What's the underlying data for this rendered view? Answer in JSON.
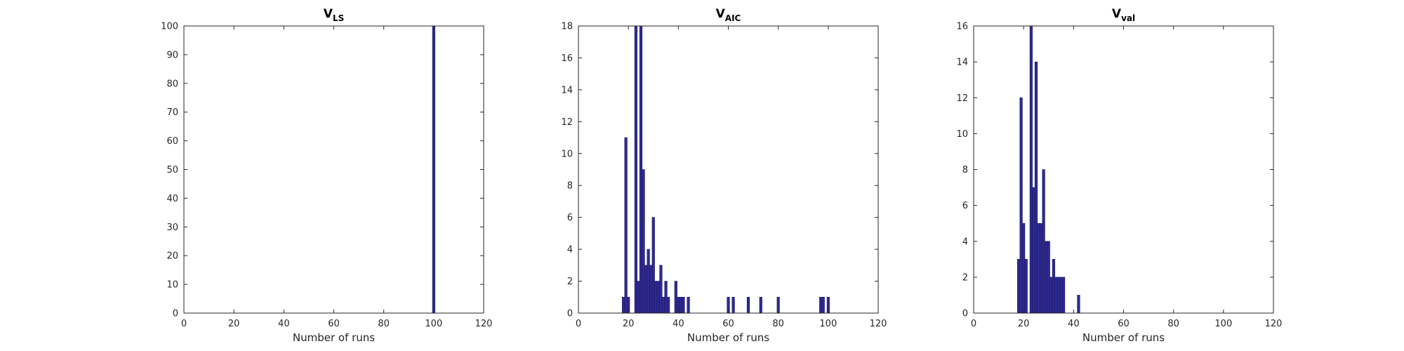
{
  "colors": {
    "bar_fill": "#2e2a8f",
    "bar_edge": "#1a1760",
    "axis": "#262626"
  },
  "chart_data": [
    {
      "type": "bar",
      "title_main": "V",
      "title_sub": "LS",
      "xlabel": "Number of runs",
      "ylabel": "",
      "xlim": [
        0,
        120
      ],
      "ylim": [
        0,
        100
      ],
      "xticks": [
        0,
        20,
        40,
        60,
        80,
        100,
        120
      ],
      "yticks": [
        0,
        10,
        20,
        30,
        40,
        50,
        60,
        70,
        80,
        90,
        100
      ],
      "bar_width": 1,
      "x": [
        100
      ],
      "values": [
        100
      ]
    },
    {
      "type": "bar",
      "title_main": "V",
      "title_sub": "AIC",
      "xlabel": "Number of runs",
      "ylabel": "",
      "xlim": [
        0,
        120
      ],
      "ylim": [
        0,
        18
      ],
      "xticks": [
        0,
        20,
        40,
        60,
        80,
        100,
        120
      ],
      "yticks": [
        0,
        2,
        4,
        6,
        8,
        10,
        12,
        14,
        16,
        18
      ],
      "bar_width": 1,
      "x": [
        18,
        19,
        20,
        23,
        24,
        25,
        26,
        27,
        28,
        29,
        30,
        31,
        32,
        33,
        34,
        35,
        36,
        39,
        40,
        41,
        42,
        44,
        60,
        62,
        68,
        73,
        80,
        97,
        98,
        100
      ],
      "values": [
        1,
        11,
        1,
        18,
        2,
        18,
        9,
        3,
        4,
        3,
        6,
        2,
        2,
        3,
        1,
        2,
        1,
        2,
        1,
        1,
        1,
        1,
        1,
        1,
        1,
        1,
        1,
        1,
        1,
        1
      ]
    },
    {
      "type": "bar",
      "title_main": "V",
      "title_sub": "val",
      "xlabel": "Number of runs",
      "ylabel": "",
      "xlim": [
        0,
        120
      ],
      "ylim": [
        0,
        16
      ],
      "xticks": [
        0,
        20,
        40,
        60,
        80,
        100,
        120
      ],
      "yticks": [
        0,
        2,
        4,
        6,
        8,
        10,
        12,
        14,
        16
      ],
      "bar_width": 1,
      "x": [
        18,
        19,
        20,
        21,
        23,
        24,
        25,
        26,
        27,
        28,
        29,
        30,
        31,
        32,
        33,
        34,
        35,
        36,
        42
      ],
      "values": [
        3,
        12,
        5,
        3,
        16,
        7,
        14,
        5,
        5,
        8,
        4,
        4,
        2,
        3,
        2,
        2,
        2,
        2,
        1
      ]
    }
  ]
}
